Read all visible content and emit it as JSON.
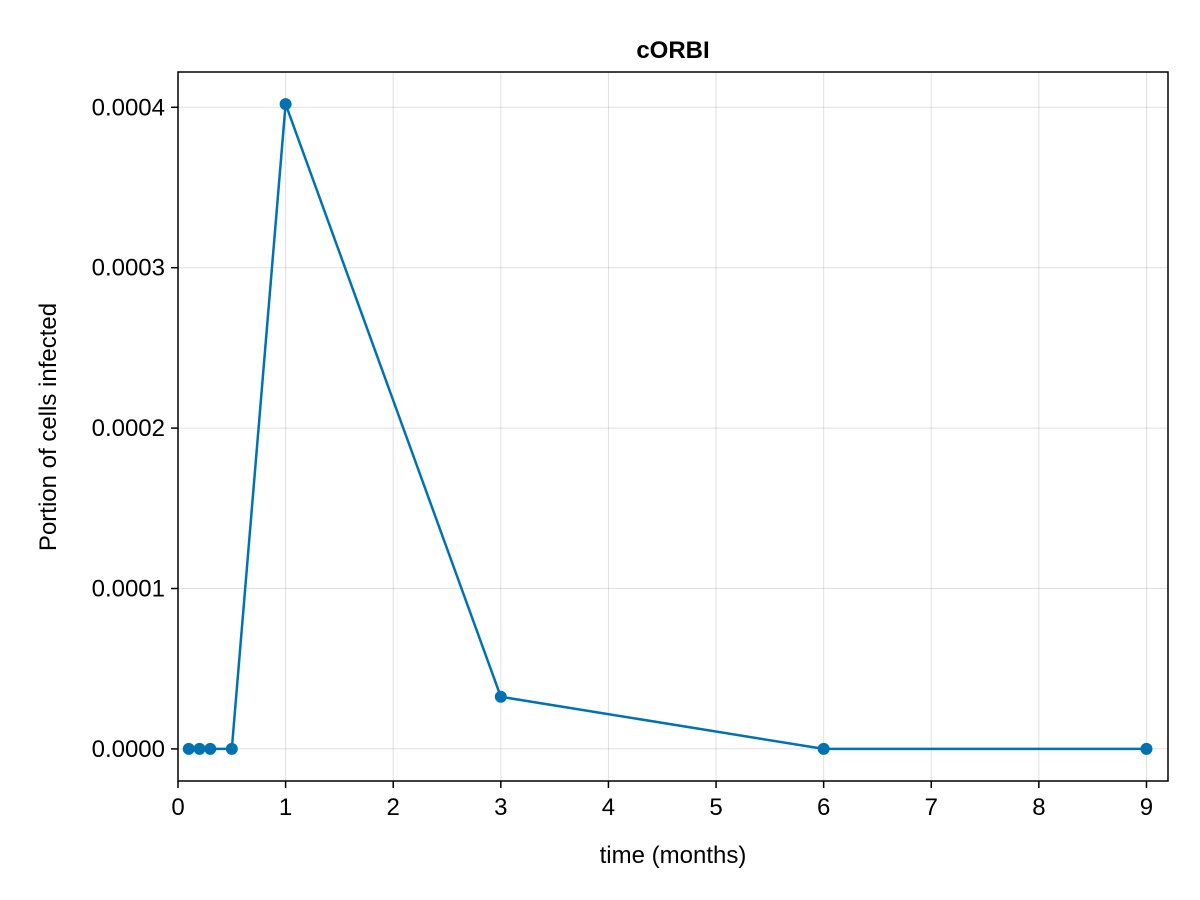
{
  "chart_data": {
    "type": "line",
    "title": "cORBI",
    "xlabel": "time (months)",
    "ylabel": "Portion of cells infected",
    "xlim": [
      0,
      9.2
    ],
    "ylim": [
      -2e-05,
      0.000422
    ],
    "xticks": [
      0,
      1,
      2,
      3,
      4,
      5,
      6,
      7,
      8,
      9
    ],
    "xtick_labels": [
      "0",
      "1",
      "2",
      "3",
      "4",
      "5",
      "6",
      "7",
      "8",
      "9"
    ],
    "yticks": [
      0,
      0.0001,
      0.0002,
      0.0003,
      0.0004
    ],
    "ytick_labels": [
      "0.0000",
      "0.0001",
      "0.0002",
      "0.0003",
      "0.0004"
    ],
    "grid": true,
    "series": [
      {
        "color": "#0072b2",
        "marker": "circle",
        "x": [
          0.1,
          0.2,
          0.3,
          0.5,
          1,
          3,
          6,
          9
        ],
        "y": [
          0,
          0,
          0,
          0,
          0.000402,
          3.25e-05,
          0,
          0
        ]
      }
    ]
  }
}
